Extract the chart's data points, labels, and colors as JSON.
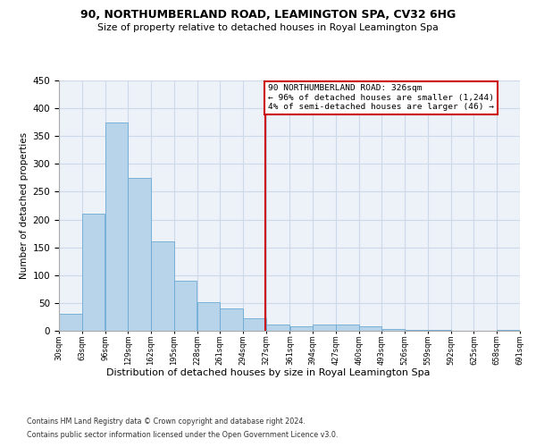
{
  "title1": "90, NORTHUMBERLAND ROAD, LEAMINGTON SPA, CV32 6HG",
  "title2": "Size of property relative to detached houses in Royal Leamington Spa",
  "xlabel": "Distribution of detached houses by size in Royal Leamington Spa",
  "ylabel": "Number of detached properties",
  "footnote1": "Contains HM Land Registry data © Crown copyright and database right 2024.",
  "footnote2": "Contains public sector information licensed under the Open Government Licence v3.0.",
  "bin_edges": [
    30,
    63,
    96,
    129,
    162,
    195,
    228,
    261,
    294,
    327,
    361,
    394,
    427,
    460,
    493,
    526,
    559,
    592,
    625,
    658,
    691
  ],
  "bar_heights": [
    30,
    210,
    375,
    275,
    160,
    90,
    52,
    40,
    22,
    11,
    8,
    11,
    11,
    8,
    4,
    1,
    2,
    0,
    0,
    1
  ],
  "bar_color": "#b8d4ea",
  "bar_edge_color": "#6aaad4",
  "grid_color": "#cdd8e8",
  "background_color": "#edf1f8",
  "property_line_x": 326,
  "annotation_line1": "90 NORTHUMBERLAND ROAD: 326sqm",
  "annotation_line2": "← 96% of detached houses are smaller (1,244)",
  "annotation_line3": "4% of semi-detached houses are larger (46) →",
  "annotation_box_edgecolor": "#cc0000",
  "ylim_max": 450,
  "yticks": [
    0,
    50,
    100,
    150,
    200,
    250,
    300,
    350,
    400,
    450
  ],
  "tick_labels": [
    "30sqm",
    "63sqm",
    "96sqm",
    "129sqm",
    "162sqm",
    "195sqm",
    "228sqm",
    "261sqm",
    "294sqm",
    "327sqm",
    "361sqm",
    "394sqm",
    "427sqm",
    "460sqm",
    "493sqm",
    "526sqm",
    "559sqm",
    "592sqm",
    "625sqm",
    "658sqm",
    "691sqm"
  ]
}
